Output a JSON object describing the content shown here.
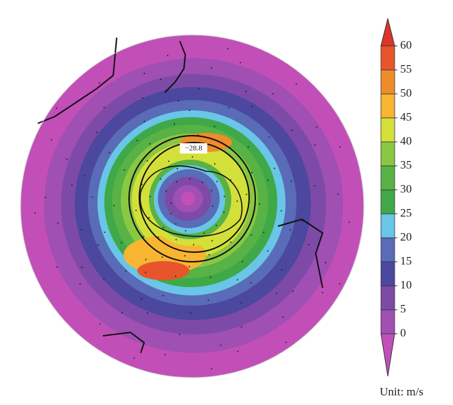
{
  "map": {
    "contour_label": "−28.8",
    "colorbar": {
      "ticks": [
        0,
        5,
        10,
        15,
        20,
        25,
        30,
        35,
        40,
        45,
        50,
        55,
        60
      ],
      "colors": [
        "#c24fb8",
        "#a04fb3",
        "#7d4aa7",
        "#4c479f",
        "#5a6bb7",
        "#69c6e6",
        "#3fa847",
        "#58b245",
        "#8ac742",
        "#d4e03a",
        "#f7b532",
        "#f08b2c",
        "#e8552b",
        "#de3429"
      ],
      "unit_label": "Unit: m/s"
    }
  }
}
